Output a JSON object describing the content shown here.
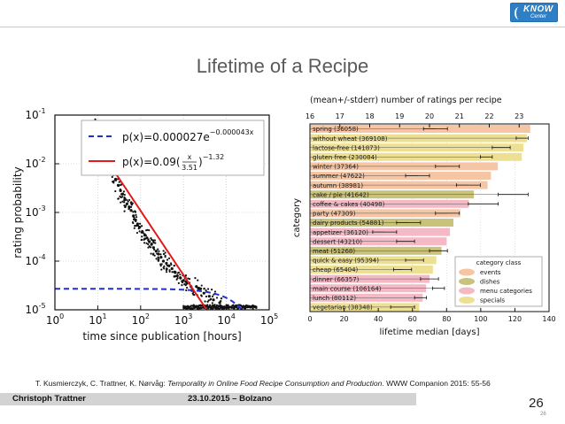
{
  "slide": {
    "title": "Lifetime of a Recipe",
    "logo_text": "KNOW",
    "logo_subtext": "Center",
    "page_number": "26",
    "page_number_small": "26"
  },
  "citation": {
    "authors": "T. Kusmierczyk, C. Trattner, K. Nørvåg: ",
    "paper_title": "Temporality in Online Food Recipe Consumption and Production",
    "venue": ". WWW Companion 2015: 55-56"
  },
  "footer": {
    "author": "Christoph Trattner",
    "date_place": "23.10.2015 – Bolzano"
  },
  "chart_data": [
    {
      "type": "scatter",
      "title": "",
      "xlabel": "time since publication [hours]",
      "ylabel": "rating probability",
      "xscale": "log",
      "yscale": "log",
      "xlim": [
        1,
        100000
      ],
      "ylim": [
        1e-05,
        0.1
      ],
      "x_tick_labels": [
        "10^0",
        "10^1",
        "10^2",
        "10^3",
        "10^4",
        "10^5"
      ],
      "y_tick_labels": [
        "10^-1",
        "10^-2",
        "10^-3",
        "10^-4",
        "10^-5"
      ],
      "legend": [
        {
          "label": "p(x)=0.000027e^{-0.000043x}",
          "style": "dashed",
          "color": "#1f2fd0"
        },
        {
          "label": "p(x)=0.09(x/3.51)^{-1.32}",
          "style": "solid",
          "color": "#e01b1b"
        }
      ],
      "series": [
        {
          "name": "empirical",
          "color": "#111111",
          "points": [
            [
              10,
              0.06
            ],
            [
              12,
              0.03
            ],
            [
              14,
              0.02
            ],
            [
              16,
              0.014
            ],
            [
              18,
              0.011
            ],
            [
              20,
              0.008
            ],
            [
              23,
              0.006
            ],
            [
              26,
              0.0048
            ],
            [
              30,
              0.0036
            ],
            [
              34,
              0.0028
            ],
            [
              38,
              0.0024
            ],
            [
              43,
              0.0019
            ],
            [
              48,
              0.0015
            ],
            [
              54,
              0.0013
            ],
            [
              60,
              0.0011
            ],
            [
              68,
              0.00085
            ],
            [
              76,
              0.0007
            ],
            [
              85,
              0.00058
            ],
            [
              95,
              0.0005
            ],
            [
              110,
              0.0004
            ],
            [
              125,
              0.00034
            ],
            [
              140,
              0.0003
            ],
            [
              160,
              0.00025
            ],
            [
              180,
              0.00022
            ],
            [
              200,
              0.00019
            ],
            [
              230,
              0.00016
            ],
            [
              260,
              0.00014
            ],
            [
              300,
              0.00012
            ],
            [
              340,
              0.0001
            ],
            [
              400,
              9e-05
            ],
            [
              460,
              8e-05
            ],
            [
              540,
              7e-05
            ],
            [
              620,
              6e-05
            ],
            [
              720,
              5e-05
            ],
            [
              850,
              4.5e-05
            ],
            [
              1000,
              4e-05
            ],
            [
              1200,
              3.5e-05
            ],
            [
              1500,
              3e-05
            ],
            [
              2000,
              3e-05
            ],
            [
              2500,
              2.7e-05
            ],
            [
              3000,
              2.2e-05
            ],
            [
              4000,
              1.9e-05
            ],
            [
              5000,
              1.6e-05
            ],
            [
              7000,
              1.4e-05
            ]
          ]
        },
        {
          "name": "exponential fit",
          "a": 2.7e-05,
          "b": 4.3e-05
        },
        {
          "name": "power-law fit",
          "c": 0.09,
          "x0": 3.51,
          "alpha": 1.32
        }
      ]
    },
    {
      "type": "bar",
      "title": "(mean+/-stderr) number of ratings per recipe",
      "xlabel": "lifetime median [days]",
      "ylabel": "category",
      "xlim": [
        0,
        140
      ],
      "x_ticks": [
        0,
        20,
        40,
        60,
        80,
        100,
        120,
        140
      ],
      "top_axis_lim": [
        16,
        24
      ],
      "top_axis_ticks": [
        16,
        17,
        18,
        19,
        20,
        21,
        22,
        23
      ],
      "legend_title": "category class",
      "legend": [
        {
          "label": "events",
          "color": "#f6c5a4"
        },
        {
          "label": "dishes",
          "color": "#c9c27a"
        },
        {
          "label": "menu categories",
          "color": "#f5b9c6"
        },
        {
          "label": "specials",
          "color": "#eee093"
        }
      ],
      "categories": [
        "spring (36058)",
        "without wheat (369108)",
        "lactose-free (141873)",
        "gluten free (230084)",
        "winter (37364)",
        "summer (47622)",
        "autumn (38981)",
        "cake / pie (41642)",
        "coffee & cakes (40498)",
        "party (47309)",
        "dairy products (54881)",
        "appetizer (36120)",
        "dessert (43210)",
        "meat (51268)",
        "quick & easy (95394)",
        "cheap (65404)",
        "dinner (66357)",
        "main course (106164)",
        "lunch (80112)",
        "vegetarian (38348)"
      ],
      "class": [
        "events",
        "specials",
        "specials",
        "specials",
        "events",
        "events",
        "events",
        "dishes",
        "menu categories",
        "events",
        "dishes",
        "menu categories",
        "menu categories",
        "dishes",
        "specials",
        "specials",
        "menu categories",
        "menu categories",
        "menu categories",
        "specials"
      ],
      "values": [
        129,
        127,
        125,
        124,
        110,
        106,
        104,
        96,
        93,
        88,
        84,
        82,
        80,
        77,
        74,
        72,
        70,
        68,
        66,
        64
      ],
      "ratings_mean": [
        20.2,
        23.1,
        22.4,
        21.9,
        20.6,
        19.6,
        21.3,
        22.8,
        21.8,
        20.6,
        19.3,
        18.5,
        19.2,
        20.3,
        19.5,
        19.1,
        20.0,
        20.3,
        19.7,
        19.1
      ],
      "ratings_err": [
        0.4,
        0.2,
        0.3,
        0.2,
        0.4,
        0.4,
        0.4,
        0.5,
        0.5,
        0.4,
        0.4,
        0.4,
        0.3,
        0.3,
        0.3,
        0.3,
        0.3,
        0.2,
        0.2,
        0.4
      ]
    }
  ]
}
